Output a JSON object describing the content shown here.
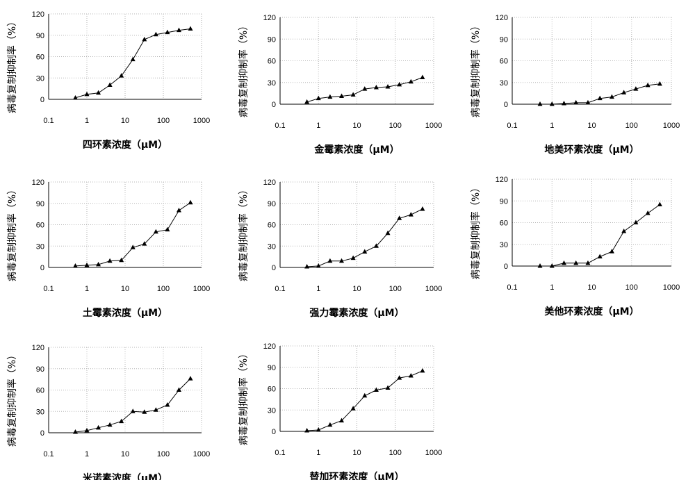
{
  "chart_data": [
    {
      "type": "line",
      "xlabel": "四环素浓度（μM）",
      "ylabel": "病毒复制抑制率（%）",
      "x_scale": "log",
      "xlim": [
        0.1,
        1000
      ],
      "ylim": [
        0,
        120
      ],
      "xticks": [
        "0.1",
        "1",
        "10",
        "100",
        "1000"
      ],
      "yticks": [
        "0",
        "30",
        "60",
        "90",
        "120"
      ],
      "grid": "dotted",
      "marker": "triangle",
      "series": [
        {
          "x": [
            0.5,
            1,
            2,
            4,
            8,
            16,
            32,
            64,
            128,
            256,
            512
          ],
          "y": [
            2,
            7,
            9,
            20,
            33,
            56,
            84,
            91,
            94,
            97,
            99
          ]
        }
      ]
    },
    {
      "type": "line",
      "xlabel": "金霉素浓度（μM）",
      "ylabel": "病毒复制抑制率（%）",
      "x_scale": "log",
      "xlim": [
        0.1,
        1000
      ],
      "ylim": [
        0,
        120
      ],
      "xticks": [
        "0.1",
        "1",
        "10",
        "100",
        "1000"
      ],
      "yticks": [
        "0",
        "30",
        "60",
        "90",
        "120"
      ],
      "grid": "dotted",
      "marker": "triangle",
      "series": [
        {
          "x": [
            0.5,
            1,
            2,
            4,
            8,
            16,
            32,
            64,
            128,
            256,
            512
          ],
          "y": [
            3,
            8,
            10,
            11,
            13,
            21,
            23,
            24,
            27,
            31,
            37
          ]
        }
      ]
    },
    {
      "type": "line",
      "xlabel": "地美环素浓度（μM）",
      "ylabel": "病毒复制抑制率（%）",
      "x_scale": "log",
      "xlim": [
        0.1,
        1000
      ],
      "ylim": [
        0,
        120
      ],
      "xticks": [
        "0.1",
        "1",
        "10",
        "100",
        "1000"
      ],
      "yticks": [
        "0",
        "30",
        "60",
        "90",
        "120"
      ],
      "grid": "dotted",
      "marker": "triangle",
      "series": [
        {
          "x": [
            0.5,
            1,
            2,
            4,
            8,
            16,
            32,
            64,
            128,
            256,
            512
          ],
          "y": [
            0,
            0,
            1,
            2,
            2,
            8,
            10,
            16,
            21,
            26,
            28
          ]
        }
      ]
    },
    {
      "type": "line",
      "xlabel": "土霉素浓度（μM）",
      "ylabel": "病毒复制抑制率（%）",
      "x_scale": "log",
      "xlim": [
        0.1,
        1000
      ],
      "ylim": [
        0,
        120
      ],
      "xticks": [
        "0.1",
        "1",
        "10",
        "100",
        "1000"
      ],
      "yticks": [
        "0",
        "30",
        "60",
        "90",
        "120"
      ],
      "grid": "dotted",
      "marker": "triangle",
      "series": [
        {
          "x": [
            0.5,
            1,
            2,
            4,
            8,
            16,
            32,
            64,
            128,
            256,
            512
          ],
          "y": [
            2,
            3,
            4,
            9,
            10,
            28,
            33,
            50,
            53,
            80,
            91
          ]
        }
      ]
    },
    {
      "type": "line",
      "xlabel": "强力霉素浓度（μM）",
      "ylabel": "病毒复制抑制率（%）",
      "x_scale": "log",
      "xlim": [
        0.1,
        1000
      ],
      "ylim": [
        0,
        120
      ],
      "xticks": [
        "0.1",
        "1",
        "10",
        "100",
        "1000"
      ],
      "yticks": [
        "0",
        "30",
        "60",
        "90",
        "120"
      ],
      "grid": "dotted",
      "marker": "triangle",
      "series": [
        {
          "x": [
            0.5,
            1,
            2,
            4,
            8,
            16,
            32,
            64,
            128,
            256,
            512
          ],
          "y": [
            1,
            2,
            9,
            9,
            13,
            22,
            30,
            48,
            69,
            74,
            82
          ]
        }
      ]
    },
    {
      "type": "line",
      "xlabel": "美他环素浓度（μM）",
      "ylabel": "病毒复制抑制率（%）",
      "x_scale": "log",
      "xlim": [
        0.1,
        1000
      ],
      "ylim": [
        0,
        120
      ],
      "xticks": [
        "0.1",
        "1",
        "10",
        "100",
        "1000"
      ],
      "yticks": [
        "0",
        "30",
        "60",
        "90",
        "120"
      ],
      "grid": "dotted",
      "marker": "triangle",
      "series": [
        {
          "x": [
            0.5,
            1,
            2,
            4,
            8,
            16,
            32,
            64,
            128,
            256,
            512
          ],
          "y": [
            0,
            0,
            4,
            4,
            4,
            13,
            20,
            48,
            60,
            73,
            85
          ]
        }
      ]
    },
    {
      "type": "line",
      "xlabel": "米诺素浓度（μM）",
      "ylabel": "病毒复制抑制率（%）",
      "x_scale": "log",
      "xlim": [
        0.1,
        1000
      ],
      "ylim": [
        0,
        120
      ],
      "xticks": [
        "0.1",
        "1",
        "10",
        "100",
        "1000"
      ],
      "yticks": [
        "0",
        "30",
        "60",
        "90",
        "120"
      ],
      "grid": "dotted",
      "marker": "triangle",
      "series": [
        {
          "x": [
            0.5,
            1,
            2,
            4,
            8,
            16,
            32,
            64,
            128,
            256,
            512
          ],
          "y": [
            1,
            3,
            7,
            11,
            16,
            30,
            29,
            32,
            39,
            60,
            76
          ]
        }
      ]
    },
    {
      "type": "line",
      "xlabel": "替加环素浓度（μM）",
      "ylabel": "病毒复制抑制率（%）",
      "x_scale": "log",
      "xlim": [
        0.1,
        1000
      ],
      "ylim": [
        0,
        120
      ],
      "xticks": [
        "0.1",
        "1",
        "10",
        "100",
        "1000"
      ],
      "yticks": [
        "0",
        "30",
        "60",
        "90",
        "120"
      ],
      "grid": "dotted",
      "marker": "triangle",
      "series": [
        {
          "x": [
            0.5,
            1,
            2,
            4,
            8,
            16,
            32,
            64,
            128,
            256,
            512
          ],
          "y": [
            1,
            2,
            9,
            15,
            32,
            50,
            58,
            61,
            75,
            78,
            85
          ]
        }
      ]
    }
  ]
}
